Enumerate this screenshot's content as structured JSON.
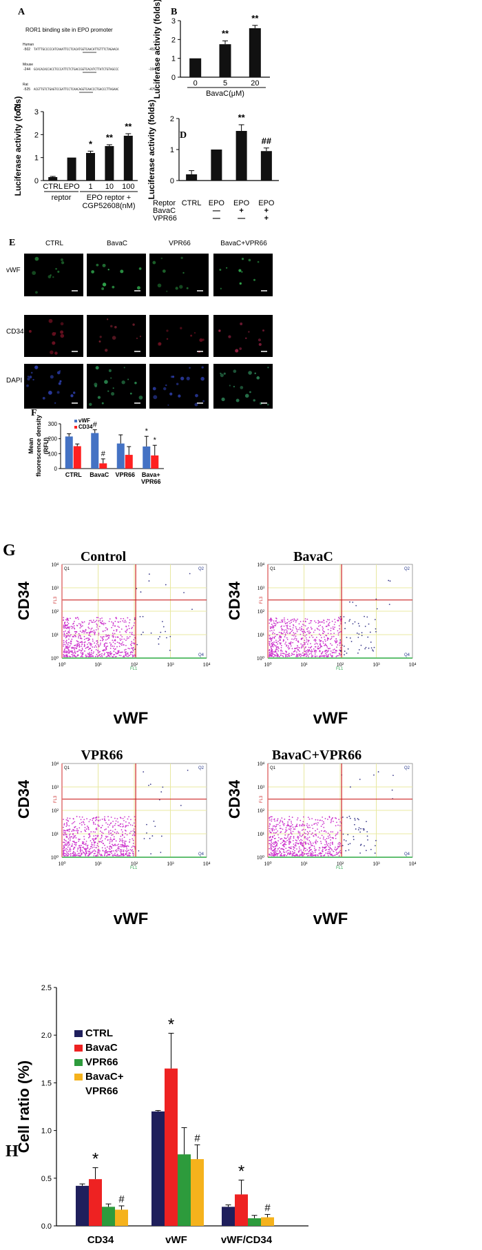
{
  "panel_labels": {
    "a": "A",
    "b": "B",
    "c": "C",
    "d": "D",
    "e": "E",
    "f": "F",
    "g": "G",
    "h": "H"
  },
  "colors": {
    "bar_black": "#111111",
    "vwf_blue": "#4472c4",
    "cd34_red": "#ff2020",
    "ctrl_navy": "#1f1f5c",
    "bavac_red": "#ee2222",
    "vpr66_green": "#2d9b3c",
    "combo_yellow": "#f5b21c",
    "scatter_magenta": "#cc33cc",
    "scatter_dots": "#3a3a8a",
    "gate_red": "#cc2222",
    "grid_yellow": "#e8e8a0"
  },
  "panel_a": {
    "title": "ROR1 binding site in EPO promoter",
    "rows": [
      {
        "species": "Human",
        "start": "-502",
        "seq": "TATTTGCCCCCATCAAATTCCTCACATGGTCAACATTGTTTCTAGAACA",
        "end": "-452"
      },
      {
        "species": "Mouse",
        "start": "-244",
        "seq": "GCACACACCACCTCCCATTCTCTGACCGGTCACATCTTATCTGTAGCCC",
        "end": "-194"
      },
      {
        "species": "Rat",
        "start": "-525",
        "seq": "ACGTTGTCTGAGTCCGATTCCTCAACAGGTCAACCCTGACCCTTAGAAC",
        "end": "-476"
      }
    ]
  },
  "chart_data": [
    {
      "id": "B",
      "type": "bar",
      "categories": [
        "0",
        "5",
        "20"
      ],
      "values": [
        1.0,
        1.75,
        2.6
      ],
      "errors": [
        0,
        0.18,
        0.15
      ],
      "significance": [
        "",
        "**",
        "**"
      ],
      "ylim": [
        0,
        3
      ],
      "yticks": [
        0,
        1,
        2,
        3
      ],
      "ylabel": "Luciferase activity (folds)",
      "xlabel": "BavaC(μM)"
    },
    {
      "id": "C",
      "type": "bar",
      "categories": [
        "CTRL",
        "EPO",
        "1",
        "10",
        "100"
      ],
      "values": [
        0.15,
        1.0,
        1.2,
        1.5,
        1.95
      ],
      "errors": [
        0.03,
        0,
        0.08,
        0.06,
        0.09
      ],
      "significance": [
        "",
        "",
        "*",
        "**",
        "**"
      ],
      "ylim": [
        0,
        3
      ],
      "yticks": [
        0,
        1,
        2,
        3
      ],
      "ylabel": "Luciferase activity (folds)",
      "group_labels": [
        {
          "text": "reptor"
        },
        {
          "text": "EPO reptor + CGP52608(nM)"
        }
      ]
    },
    {
      "id": "D",
      "type": "bar",
      "categories": [
        "CTRL",
        "EPO",
        "EPO",
        "EPO"
      ],
      "values": [
        0.2,
        1.0,
        1.6,
        0.95
      ],
      "errors": [
        0.12,
        0,
        0.2,
        0.1
      ],
      "significance": [
        "",
        "",
        "**",
        "##"
      ],
      "ylim": [
        0,
        2
      ],
      "yticks": [
        0,
        1,
        2
      ],
      "ylabel": "Luciferase activity (folds)",
      "row_labels": {
        "reptor": "Reptor",
        "bavac": "BavaC",
        "vpr66": "VPR66"
      },
      "bavac_signs": [
        "",
        "—",
        "+",
        "+"
      ],
      "vpr66_signs": [
        "",
        "—",
        "—",
        "+"
      ]
    },
    {
      "id": "F",
      "type": "bar",
      "categories": [
        "CTRL",
        "BavaC",
        "VPR66",
        "Bava+ VPR66"
      ],
      "series": [
        {
          "name": "vWF",
          "values": [
            215,
            238,
            168,
            148
          ],
          "errors": [
            18,
            22,
            58,
            68
          ]
        },
        {
          "name": "CD34",
          "values": [
            150,
            35,
            92,
            88
          ],
          "errors": [
            15,
            30,
            55,
            68
          ]
        }
      ],
      "significance": {
        "vWF": [
          "",
          "#",
          "",
          "*"
        ],
        "CD34": [
          "",
          "#",
          "",
          "*"
        ]
      },
      "ylim": [
        0,
        300
      ],
      "yticks": [
        0,
        100,
        200,
        300
      ],
      "ylabel": "Mean fluorescence density (RFU)"
    },
    {
      "id": "H",
      "type": "bar",
      "categories": [
        "CD34",
        "vWF",
        "vWF/CD34"
      ],
      "series": [
        {
          "name": "CTRL",
          "values": [
            0.42,
            1.2,
            0.2
          ],
          "errors": [
            0.02,
            0.01,
            0.02
          ]
        },
        {
          "name": "BavaC",
          "values": [
            0.49,
            1.65,
            0.33
          ],
          "errors": [
            0.12,
            0.37,
            0.15
          ]
        },
        {
          "name": "VPR66",
          "values": [
            0.2,
            0.75,
            0.08
          ],
          "errors": [
            0.03,
            0.28,
            0.03
          ]
        },
        {
          "name": "BavaC+ VPR66",
          "values": [
            0.17,
            0.7,
            0.09
          ],
          "errors": [
            0.04,
            0.15,
            0.03
          ]
        }
      ],
      "significance": [
        [
          "",
          "*",
          "",
          ""
        ],
        [
          "",
          "*",
          "",
          ""
        ],
        [
          "",
          "*",
          "",
          ""
        ]
      ],
      "hash_marks": [
        [
          "",
          "",
          "",
          "#"
        ],
        [
          "",
          "",
          "",
          "#"
        ],
        [
          "",
          "",
          "",
          "#"
        ]
      ],
      "ylim": [
        0,
        2.5
      ],
      "yticks": [
        "0.0",
        "0.5",
        "1.0",
        "1.5",
        "2.0",
        "2.5"
      ],
      "ylabel": "Cell ratio (%)"
    }
  ],
  "panel_e": {
    "columns": [
      "CTRL",
      "BavaC",
      "VPR66",
      "BavaC+VPR66"
    ],
    "rows": [
      "vWF",
      "CD34",
      "DAPI"
    ]
  },
  "panel_g": {
    "plots": [
      {
        "title": "Control"
      },
      {
        "title": "BavaC"
      },
      {
        "title": "VPR66"
      },
      {
        "title": "BavaC+VPR66"
      }
    ],
    "ylabel": "CD34",
    "xlabel": "vWF",
    "ticks": [
      "10⁰",
      "10¹",
      "10²",
      "10³",
      "10⁴"
    ],
    "quadrants": [
      "Q1",
      "Q2",
      "Q4"
    ],
    "fl3": "FL3",
    "fl1": "FL1"
  }
}
